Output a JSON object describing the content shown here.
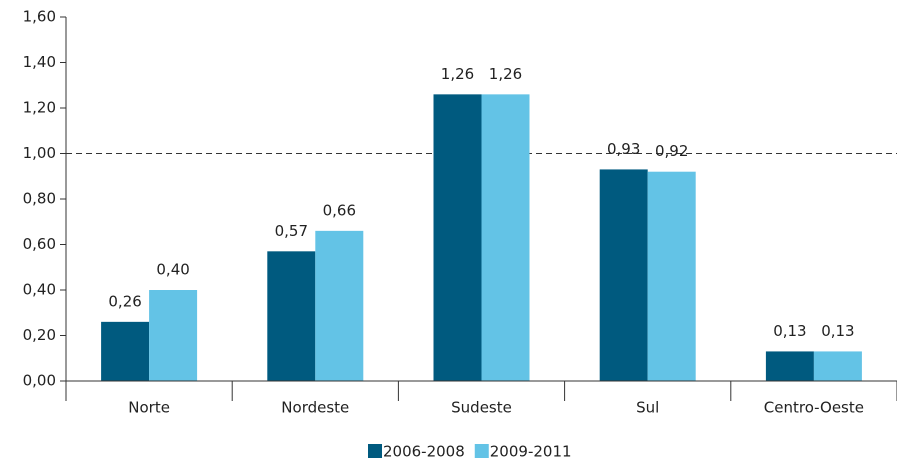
{
  "chart_data": {
    "type": "bar",
    "categories": [
      "Norte",
      "Nordeste",
      "Sudeste",
      "Sul",
      "Centro-Oeste"
    ],
    "series": [
      {
        "name": "2006-2008",
        "color": "#005a7f",
        "values": [
          0.26,
          0.57,
          1.26,
          0.93,
          0.13
        ],
        "value_labels": [
          "0,26",
          "0,57",
          "1,26",
          "0,93",
          "0,13"
        ]
      },
      {
        "name": "2009-2011",
        "color": "#63c3e6",
        "values": [
          0.4,
          0.66,
          1.26,
          0.92,
          0.13
        ],
        "value_labels": [
          "0,40",
          "0,66",
          "1,26",
          "0,92",
          "0,13"
        ]
      }
    ],
    "ylim": [
      0,
      1.6
    ],
    "yticks": [
      {
        "value": 0,
        "label": "0,00"
      },
      {
        "value": 0.2,
        "label": "0,20"
      },
      {
        "value": 0.4,
        "label": "0,40"
      },
      {
        "value": 0.6,
        "label": "0,60"
      },
      {
        "value": 0.8,
        "label": "0,80"
      },
      {
        "value": 1,
        "label": "1,00"
      },
      {
        "value": 1.2,
        "label": "1,20"
      },
      {
        "value": 1.4,
        "label": "1,40"
      },
      {
        "value": 1.6,
        "label": "1,60"
      }
    ],
    "reference_line": 1,
    "legend": "bottom"
  }
}
